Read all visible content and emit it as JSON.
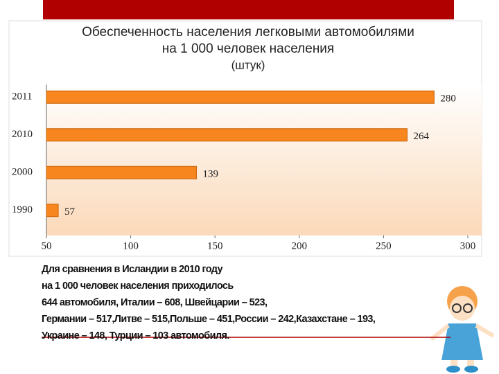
{
  "chart_data": {
    "type": "bar",
    "orientation": "horizontal",
    "title": [
      "Обеспеченность населения легковыми автомобилями",
      "на 1 000 человек населения"
    ],
    "subtitle": "(штук)",
    "categories": [
      "2011",
      "2010",
      "2000",
      "1990"
    ],
    "values": [
      280,
      264,
      139,
      57
    ],
    "color": "#f7861f",
    "xlim": [
      50,
      300
    ],
    "xticks": [
      50,
      100,
      150,
      200,
      250,
      300
    ],
    "grid": false
  },
  "note": [
    "Для сравнения в Исландии в 2010 году",
    "на 1 000 человек населения приходилось",
    "644 автомобиля, Италии – 608, Швейцарии – 523,",
    "Германии – 517,Литве – 515,Польше – 451,России – 242,Казахстане – 193,",
    "Украине – 148, Турции – 103 автомобиля."
  ]
}
